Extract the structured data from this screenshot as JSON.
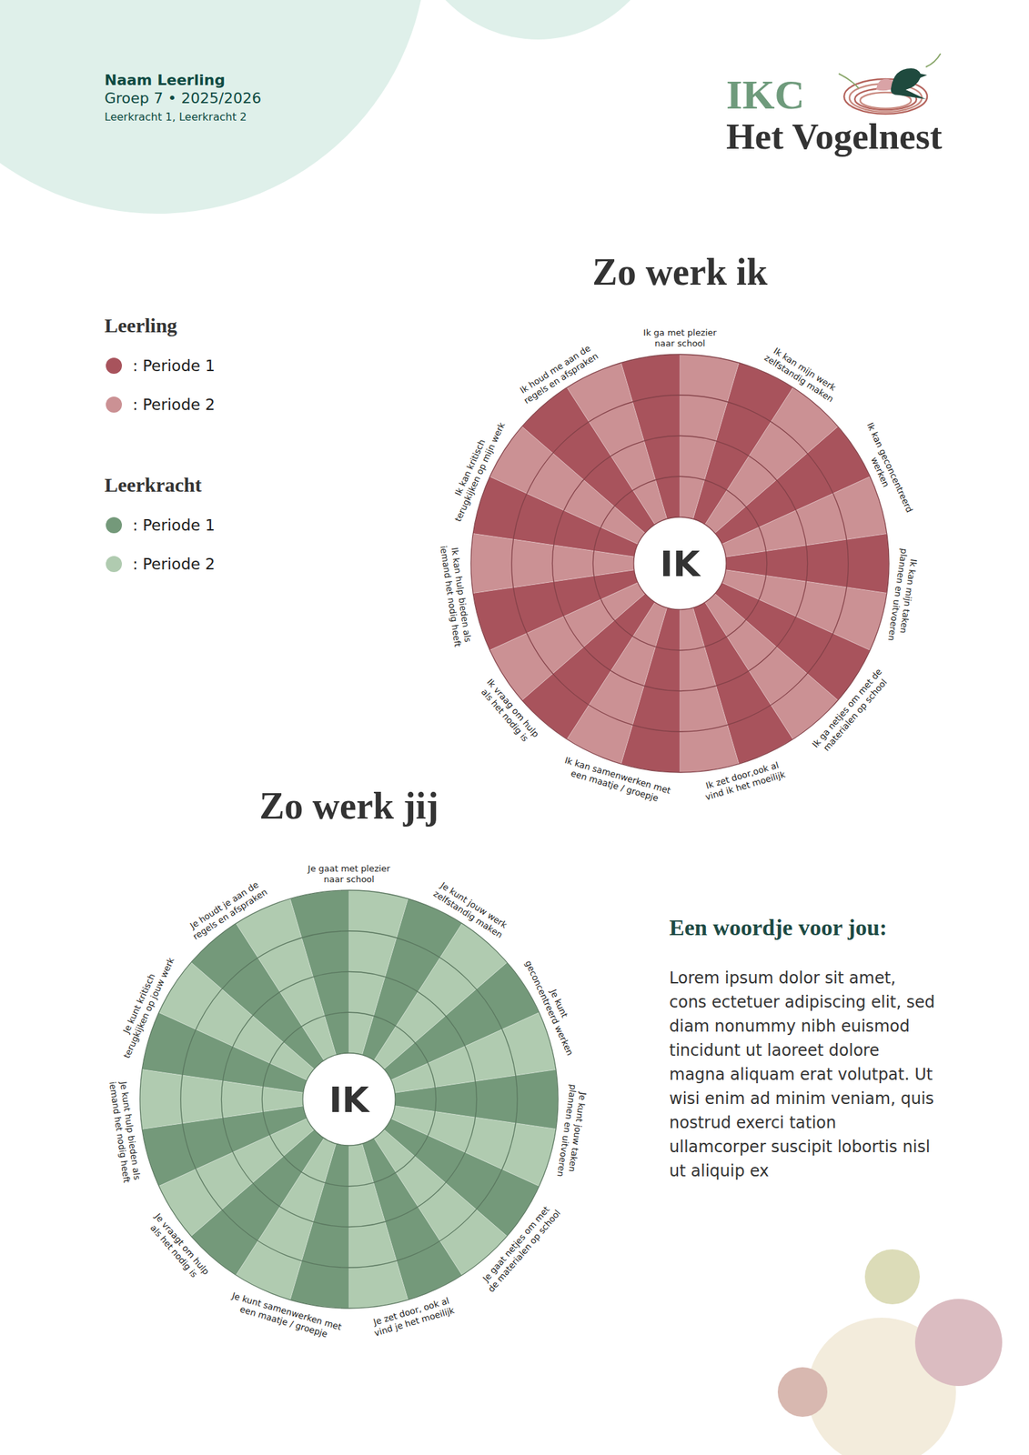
{
  "header": {
    "student": "Naam Leerling",
    "class_year": "Groep 7 • 2025/2026",
    "teachers": "Leerkracht 1, Leerkracht 2"
  },
  "logo": {
    "short": "IKC",
    "name": "Het Vogelnest"
  },
  "chart_data": [
    {
      "type": "radial_bar",
      "title": "Zo werk ik",
      "center_label": "IK",
      "legend_title": "Leerling",
      "legend": "left",
      "categories": [
        "Ik ga met plezier naar school",
        "Ik kan mijn werk zelfstandig maken",
        "Ik kan geconcentreerd werken",
        "Ik kan mijn taken plannen en uitvoeren",
        "Ik ga netjes om met de materialen op school",
        "Ik zet door,ook al vind ik het moeilijk",
        "Ik kan samenwerken met een maatje / groepje",
        "Ik vraag om hulp als het nodig is",
        "Ik kan hulp bieden als iemand het nodig heeft",
        "Ik kan kritisch terugkijken op mijn werk",
        "Ik houd me aan de regels en afspraken"
      ],
      "ylim": [
        0,
        4
      ],
      "yticks": [
        1,
        2,
        3,
        4
      ],
      "grid": true,
      "tick_labels": false,
      "series": [
        {
          "name": ": Periode 1",
          "color": "#a8535c",
          "values": [
            4,
            4,
            4,
            4,
            4,
            4,
            4,
            4,
            4,
            4,
            4
          ]
        },
        {
          "name": ": Periode 2",
          "color": "#cb9194",
          "values": [
            4,
            4,
            4,
            4,
            4,
            4,
            4,
            4,
            4,
            4,
            4
          ]
        }
      ]
    },
    {
      "type": "radial_bar",
      "title": "Zo werk jij",
      "center_label": "IK",
      "legend_title": "Leerkracht",
      "legend": "left",
      "categories": [
        "Je gaat met plezier naar school",
        "Je kunt jouw werk zelfstandig maken",
        "Je kunt geconcentreerd werken",
        "Je kunt jouw taken plannen en uitvoeren",
        "Je gaat netjes om met de materialen op school",
        "Je zet door, ook al vind je het moeilijk",
        "Je kunt samenwerken met een maatje / groepje",
        "Je vraagt om hulp als het nodig is",
        "Je kunt hulp bieden als iemand het nodig heeft",
        "Je kunt kritisch terugkijken op jouw werk",
        "Je houdt je aan de regels en afspraken"
      ],
      "ylim": [
        0,
        4
      ],
      "yticks": [
        1,
        2,
        3,
        4
      ],
      "grid": true,
      "tick_labels": false,
      "series": [
        {
          "name": ": Periode 1",
          "color": "#74997a",
          "values": [
            4,
            4,
            4,
            4,
            4,
            4,
            4,
            4,
            4,
            4,
            4
          ]
        },
        {
          "name": ": Periode 2",
          "color": "#b0cbb0",
          "values": [
            4,
            4,
            4,
            4,
            4,
            4,
            4,
            4,
            4,
            4,
            4
          ]
        }
      ]
    }
  ],
  "note": {
    "title": "Een woordje voor jou:",
    "text": "Lorem ipsum dolor sit amet, cons ectetuer adipiscing elit, sed diam nonummy nibh euismod tincidunt ut laoreet dolore magna aliquam erat volutpat. Ut wisi enim ad minim veniam, quis nostrud exerci tation ullamcorper suscipit lobortis nisl ut aliquip ex"
  }
}
